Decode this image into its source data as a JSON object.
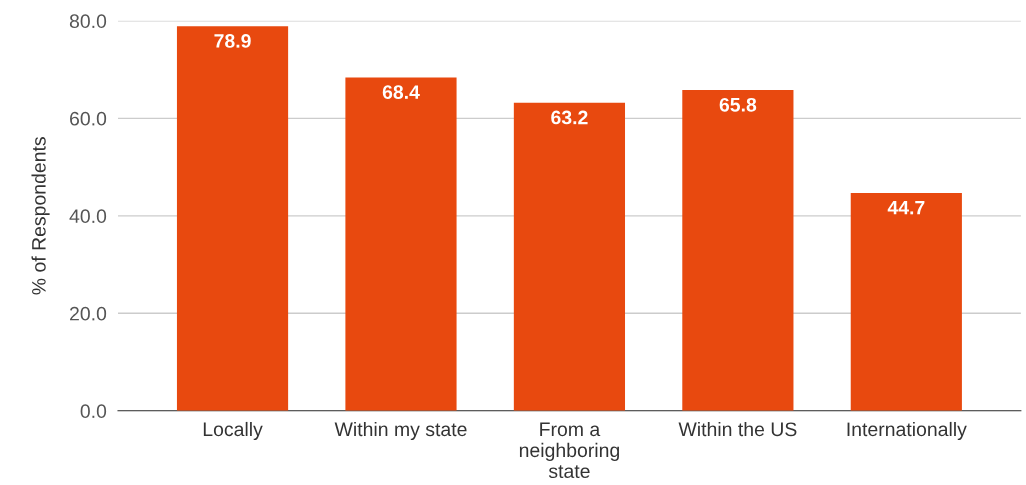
{
  "chart_data": {
    "type": "bar",
    "ylabel": "% of Respondents",
    "categories": [
      "Locally",
      "Within my state",
      "From a\nneighboring\nstate",
      "Within the US",
      "Internationally"
    ],
    "values": [
      78.9,
      68.4,
      63.2,
      65.8,
      44.7
    ],
    "color": "#e8490f",
    "ylim": [
      0,
      80
    ],
    "yticks": [
      {
        "value": 0,
        "label": "0.0"
      },
      {
        "value": 20,
        "label": "20.0"
      },
      {
        "value": 40,
        "label": "40.0"
      },
      {
        "value": 60,
        "label": "60.0"
      },
      {
        "value": 80,
        "label": "80.0"
      }
    ],
    "grid": "y",
    "data_labels": true,
    "legend": false
  }
}
